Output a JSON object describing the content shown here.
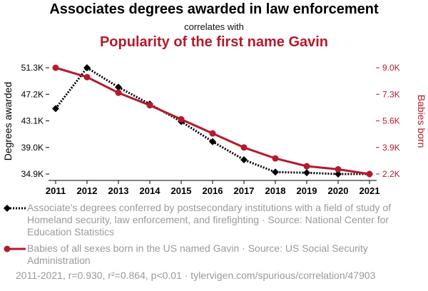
{
  "header": {
    "title": "Associates degrees awarded in law enforcement",
    "connector": "correlates with",
    "title2": "Popularity of the first name Gavin"
  },
  "colors": {
    "series1": "#000000",
    "series2": "#b31b2c",
    "text_muted": "#9a9a9a"
  },
  "chart_data": {
    "type": "line",
    "x": [
      2011,
      2012,
      2013,
      2014,
      2015,
      2016,
      2017,
      2018,
      2019,
      2020,
      2021
    ],
    "xticks": [
      "2011",
      "2012",
      "2013",
      "2014",
      "2015",
      "2016",
      "2017",
      "2018",
      "2019",
      "2020",
      "2021"
    ],
    "left_axis": {
      "label": "Degrees awarded",
      "ticks": [
        "34.9K",
        "39.0K",
        "43.1K",
        "47.2K",
        "51.3K"
      ],
      "tick_values": [
        34900,
        39000,
        43100,
        47200,
        51300
      ],
      "range": [
        34900,
        51300
      ]
    },
    "right_axis": {
      "label": "Babies born",
      "ticks": [
        "2.2K",
        "3.9K",
        "5.6K",
        "7.3K",
        "9.0K"
      ],
      "tick_values": [
        2200,
        3900,
        5600,
        7300,
        9000
      ],
      "range": [
        2200,
        9000
      ]
    },
    "series": [
      {
        "key": "degrees",
        "axis": "left",
        "style": "dotted",
        "marker": "diamond",
        "values": [
          45000,
          51300,
          48300,
          45700,
          43000,
          39900,
          37100,
          35200,
          35100,
          34900,
          34900
        ]
      },
      {
        "key": "gavin",
        "axis": "right",
        "style": "solid",
        "marker": "circle",
        "values": [
          9000,
          8400,
          7400,
          6600,
          5700,
          4800,
          3900,
          3200,
          2700,
          2500,
          2200
        ]
      }
    ],
    "grid": false,
    "legend_placement": "bottom"
  },
  "legend": [
    {
      "text": "Associate's degrees conferred by postsecondary institutions with a field of study of Homeland security, law enforcement, and firefighting · Source: National Center for Education Statistics"
    },
    {
      "text": "Babies of all sexes born in the US named Gavin · Source: US Social Security Administration"
    }
  ],
  "footer": "2011-2021, r=0.930, r²=0.864, p<0.01 · tylervigen.com/spurious/correlation/47903"
}
